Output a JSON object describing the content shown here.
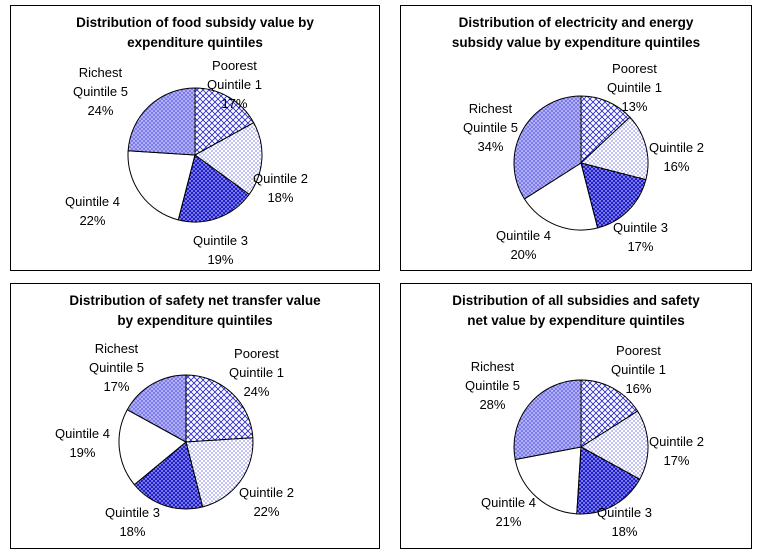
{
  "chart_data": [
    {
      "type": "pie",
      "title_lines": [
        "Distribution of food subsidy value by",
        "expenditure quintiles"
      ],
      "slices": [
        {
          "label_lines": [
            "Poorest",
            "Quintile 1"
          ],
          "pct_label": "17%",
          "value": 17,
          "pattern": "crosshatch"
        },
        {
          "label_lines": [
            "Quintile 2"
          ],
          "pct_label": "18%",
          "value": 18,
          "pattern": "dots"
        },
        {
          "label_lines": [
            "Quintile 3"
          ],
          "pct_label": "19%",
          "value": 19,
          "pattern": "solid-dots"
        },
        {
          "label_lines": [
            "Quintile 4"
          ],
          "pct_label": "22%",
          "value": 22,
          "pattern": "white"
        },
        {
          "label_lines": [
            "Richest",
            "Quintile 5"
          ],
          "pct_label": "24%",
          "value": 24,
          "pattern": "blue-dots"
        }
      ]
    },
    {
      "type": "pie",
      "title_lines": [
        "Distribution of electricity and energy",
        "subsidy value by expenditure quintiles"
      ],
      "slices": [
        {
          "label_lines": [
            "Poorest",
            "Quintile 1"
          ],
          "pct_label": "13%",
          "value": 13,
          "pattern": "crosshatch"
        },
        {
          "label_lines": [
            "Quintile 2"
          ],
          "pct_label": "16%",
          "value": 16,
          "pattern": "dots"
        },
        {
          "label_lines": [
            "Quintile 3"
          ],
          "pct_label": "17%",
          "value": 17,
          "pattern": "solid-dots"
        },
        {
          "label_lines": [
            "Quintile 4"
          ],
          "pct_label": "20%",
          "value": 20,
          "pattern": "white"
        },
        {
          "label_lines": [
            "Richest",
            "Quintile 5"
          ],
          "pct_label": "34%",
          "value": 34,
          "pattern": "blue-dots"
        }
      ]
    },
    {
      "type": "pie",
      "title_lines": [
        "Distribution of safety net transfer value",
        "by expenditure quintiles"
      ],
      "slices": [
        {
          "label_lines": [
            "Poorest",
            "Quintile 1"
          ],
          "pct_label": "24%",
          "value": 24,
          "pattern": "crosshatch"
        },
        {
          "label_lines": [
            "Quintile 2"
          ],
          "pct_label": "22%",
          "value": 22,
          "pattern": "dots"
        },
        {
          "label_lines": [
            "Quintile 3"
          ],
          "pct_label": "18%",
          "value": 18,
          "pattern": "solid-dots"
        },
        {
          "label_lines": [
            "Quintile 4"
          ],
          "pct_label": "19%",
          "value": 19,
          "pattern": "white"
        },
        {
          "label_lines": [
            "Richest",
            "Quintile 5"
          ],
          "pct_label": "17%",
          "value": 17,
          "pattern": "blue-dots"
        }
      ]
    },
    {
      "type": "pie",
      "title_lines": [
        "Distribution of all subsidies and safety",
        "net value by expenditure quintiles"
      ],
      "slices": [
        {
          "label_lines": [
            "Poorest",
            "Quintile 1"
          ],
          "pct_label": "16%",
          "value": 16,
          "pattern": "crosshatch"
        },
        {
          "label_lines": [
            "Quintile 2"
          ],
          "pct_label": "17%",
          "value": 17,
          "pattern": "dots"
        },
        {
          "label_lines": [
            "Quintile 3"
          ],
          "pct_label": "18%",
          "value": 18,
          "pattern": "solid-dots"
        },
        {
          "label_lines": [
            "Quintile 4"
          ],
          "pct_label": "21%",
          "value": 21,
          "pattern": "white"
        },
        {
          "label_lines": [
            "Richest",
            "Quintile 5"
          ],
          "pct_label": "28%",
          "value": 28,
          "pattern": "blue-dots"
        }
      ]
    }
  ],
  "colors": {
    "blue": "#1f1fd0",
    "light_blue": "#8c8cf0",
    "border": "#000000",
    "background": "#ffffff"
  }
}
